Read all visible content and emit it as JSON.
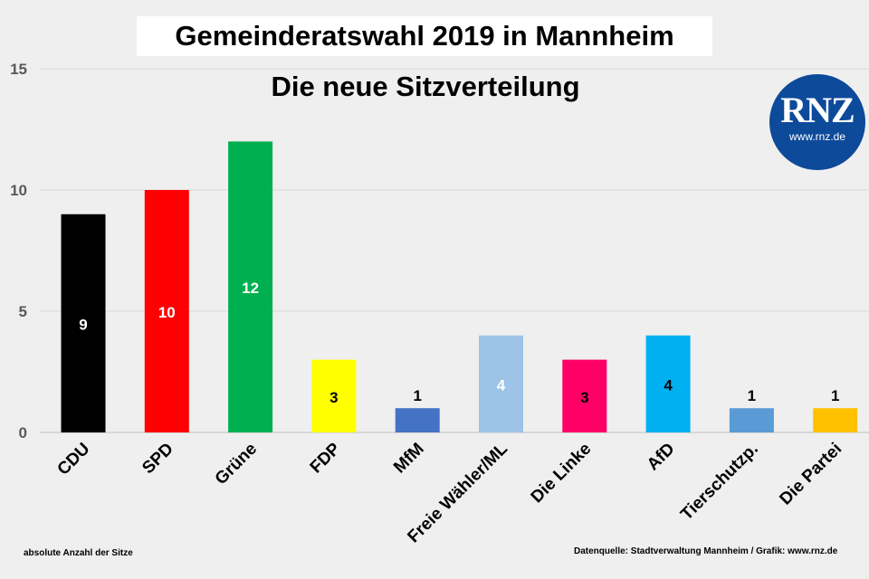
{
  "title": "Gemeinderatswahl 2019 in Mannheim",
  "subtitle": "Die neue Sitzverteilung",
  "logo": {
    "text": "RNZ",
    "url": "www.rnz.de",
    "color": "#0d4a9a"
  },
  "footnote_left": "absolute Anzahl der Sitze",
  "footnote_right": "Datenquelle: Stadtverwaltung Mannheim / Grafik: www.rnz.de",
  "chart_data": {
    "type": "bar",
    "title": "Gemeinderatswahl 2019 in Mannheim",
    "subtitle": "Die neue Sitzverteilung",
    "categories": [
      "CDU",
      "SPD",
      "Grüne",
      "FDP",
      "MfM",
      "Freie Wähler/ML",
      "Die Linke",
      "AfD",
      "Tierschutzp.",
      "Die Partei"
    ],
    "values": [
      9,
      10,
      12,
      3,
      1,
      4,
      3,
      4,
      1,
      1
    ],
    "colors": [
      "#000000",
      "#ff0000",
      "#00b050",
      "#ffff00",
      "#4472c4",
      "#9dc3e6",
      "#ff0066",
      "#00b0f0",
      "#5b9bd5",
      "#ffc000"
    ],
    "label_colors": [
      "#ffffff",
      "#ffffff",
      "#ffffff",
      "#000000",
      "#000000",
      "#ffffff",
      "#000000",
      "#000000",
      "#000000",
      "#000000"
    ],
    "label_inside": [
      true,
      true,
      true,
      true,
      false,
      true,
      true,
      true,
      false,
      false
    ],
    "ylim": [
      0,
      15
    ],
    "yticks": [
      0,
      5,
      10,
      15
    ],
    "grid": true,
    "xlabel": "",
    "ylabel": ""
  }
}
